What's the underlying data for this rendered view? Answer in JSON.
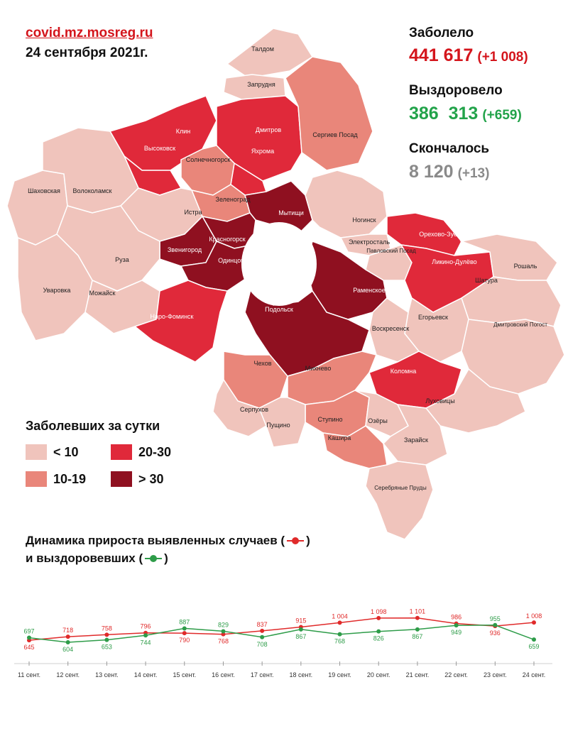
{
  "header": {
    "source_link": "covid.mz.mosreg.ru",
    "date": "24 сентября 2021г."
  },
  "stats": {
    "infected_label": "Заболело",
    "infected_total": "441 617",
    "infected_delta": "(+1 008)",
    "recovered_label": "Выздоровело",
    "recovered_total": "386  313",
    "recovered_delta": "(+659)",
    "deaths_label": "Скончалось",
    "deaths_total": "8 120",
    "deaths_delta": "(+13)"
  },
  "colors": {
    "accent_red": "#d4151c",
    "recovered_green": "#22a34a",
    "deaths_gray": "#8a8a8a",
    "cat_lt10": "#f0c4bc",
    "cat_10_19": "#e9867a",
    "cat_20_30": "#e0293a",
    "cat_gt30": "#8f1020",
    "line_cases": "#e02a2a",
    "line_recovered": "#2e9c49"
  },
  "map": {
    "regions": [
      {
        "name": "Талдом",
        "category": "lt10"
      },
      {
        "name": "Запрудня",
        "category": "lt10"
      },
      {
        "name": "Клин",
        "category": "20-30"
      },
      {
        "name": "Высоковск",
        "category": "20-30"
      },
      {
        "name": "Дмитров",
        "category": "20-30"
      },
      {
        "name": "Яхрома",
        "category": "20-30"
      },
      {
        "name": "Сергиев Посад",
        "category": "10-19"
      },
      {
        "name": "Солнечногорск",
        "category": "10-19"
      },
      {
        "name": "Шаховская",
        "category": "lt10"
      },
      {
        "name": "Волоколамск",
        "category": "lt10"
      },
      {
        "name": "Зеленоград",
        "category": "10-19"
      },
      {
        "name": "Истра",
        "category": "lt10"
      },
      {
        "name": "Мытищи",
        "category": "gt30"
      },
      {
        "name": "Ногинск",
        "category": "lt10"
      },
      {
        "name": "Орехово-Зуево",
        "category": "20-30"
      },
      {
        "name": "Красногорск",
        "category": "gt30"
      },
      {
        "name": "Электросталь",
        "category": "lt10"
      },
      {
        "name": "Звенигород",
        "category": "gt30"
      },
      {
        "name": "Павловский Посад",
        "category": "lt10"
      },
      {
        "name": "Ликино-Дулёво",
        "category": "20-30"
      },
      {
        "name": "Рошаль",
        "category": "lt10"
      },
      {
        "name": "Руза",
        "category": "lt10"
      },
      {
        "name": "Одинцово",
        "category": "gt30"
      },
      {
        "name": "Шатура",
        "category": "lt10"
      },
      {
        "name": "Уваровка",
        "category": "lt10"
      },
      {
        "name": "Можайск",
        "category": "lt10"
      },
      {
        "name": "Раменское",
        "category": "gt30"
      },
      {
        "name": "Наро-Фоминск",
        "category": "20-30"
      },
      {
        "name": "Подольск",
        "category": "gt30"
      },
      {
        "name": "Егорьевск",
        "category": "lt10"
      },
      {
        "name": "Воскресенск",
        "category": "lt10"
      },
      {
        "name": "Дмитровский Погост",
        "category": "lt10"
      },
      {
        "name": "Чехов",
        "category": "10-19"
      },
      {
        "name": "Михнево",
        "category": "10-19"
      },
      {
        "name": "Коломна",
        "category": "20-30"
      },
      {
        "name": "Луховицы",
        "category": "lt10"
      },
      {
        "name": "Серпухов",
        "category": "lt10"
      },
      {
        "name": "Ступино",
        "category": "10-19"
      },
      {
        "name": "Пущино",
        "category": "lt10"
      },
      {
        "name": "Озёры",
        "category": "lt10"
      },
      {
        "name": "Зарайск",
        "category": "lt10"
      },
      {
        "name": "Кашира",
        "category": "10-19"
      },
      {
        "name": "Серебряные Пруды",
        "category": "lt10"
      }
    ]
  },
  "legend": {
    "title": "Заболевших за сутки",
    "items": [
      {
        "label": "< 10",
        "category": "lt10"
      },
      {
        "label": "20-30",
        "category": "20-30"
      },
      {
        "label": "10-19",
        "category": "10-19"
      },
      {
        "label": "> 30",
        "category": "gt30"
      }
    ]
  },
  "dynamics": {
    "title_line1": "Динамика прироста выявленных случаев (",
    "title_line1_end": ")",
    "title_line2": "и выздоровевших (",
    "title_line2_end": ")"
  },
  "chart_data": {
    "type": "line",
    "x": [
      "11 сент.",
      "12 сент.",
      "13 сент.",
      "14 сент.",
      "15 сент.",
      "16 сент.",
      "17 сент.",
      "18 сент.",
      "19 сент.",
      "20 сент.",
      "21 сент.",
      "22 сент.",
      "23 сент.",
      "24 сент."
    ],
    "series": [
      {
        "values": [
          645,
          718,
          758,
          796,
          790,
          768,
          837,
          915,
          1004,
          1098,
          1101,
          986,
          936,
          1008
        ],
        "color": "#e02a2a",
        "labels": [
          "645",
          "718",
          "758",
          "796",
          "790",
          "768",
          "837",
          "915",
          "1 004",
          "1 098",
          "1 101",
          "986",
          "936",
          "1 008"
        ]
      },
      {
        "values": [
          697,
          604,
          653,
          744,
          887,
          829,
          708,
          867,
          768,
          826,
          867,
          949,
          955,
          659
        ],
        "color": "#2e9c49",
        "labels": [
          "697",
          "604",
          "653",
          "744",
          "887",
          "829",
          "708",
          "867",
          "768",
          "826",
          "867",
          "949",
          "955",
          "659"
        ]
      }
    ],
    "title": "",
    "xlabel": "",
    "ylabel": "",
    "grid": false
  }
}
